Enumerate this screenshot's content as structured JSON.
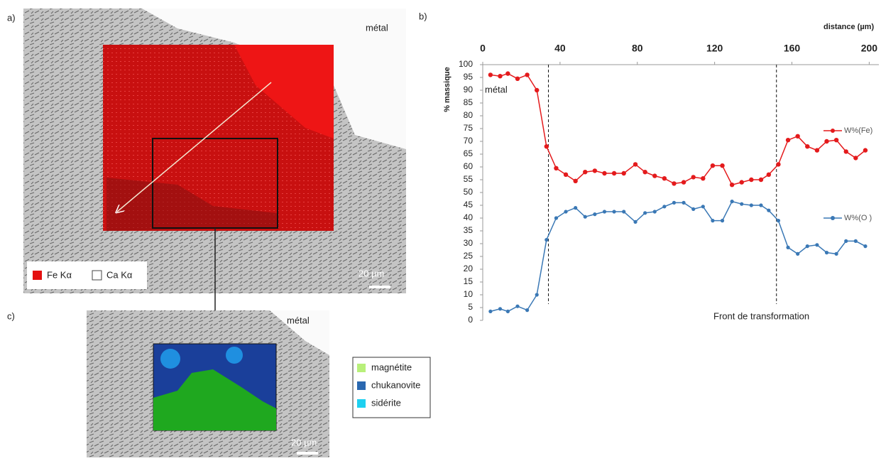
{
  "panel_a": {
    "label": "a)",
    "metal": "métal",
    "legend": [
      "Fe Kα",
      "Ca Kα"
    ],
    "scale": "20 µm"
  },
  "panel_c": {
    "label": "c)",
    "metal": "métal",
    "scale": "20 µm",
    "legend": [
      "magnétite",
      "chukanovite",
      "sidérite"
    ]
  },
  "chart_data": {
    "type": "line",
    "panel_label": "b)",
    "x_label": "distance (µm)",
    "y_label": "% massique",
    "annotations": [
      "métal",
      "Front de transformation"
    ],
    "vlines": [
      34,
      152
    ],
    "x": [
      4,
      9,
      13,
      18,
      23,
      28,
      33,
      38,
      43,
      48,
      53,
      58,
      63,
      68,
      73,
      79,
      84,
      89,
      94,
      99,
      104,
      109,
      114,
      119,
      124,
      129,
      134,
      139,
      144,
      148,
      153,
      158,
      163,
      168,
      173,
      178,
      183,
      188,
      193,
      198
    ],
    "series": [
      {
        "name": "W%(Fe)",
        "color": "#e41a1c",
        "values": [
          96,
          95.5,
          96.5,
          94.5,
          96,
          90,
          68,
          59.5,
          57,
          54.5,
          58,
          58.5,
          57.5,
          57.5,
          57.5,
          61,
          58,
          56.5,
          55.5,
          53.5,
          54,
          56,
          55.5,
          60.5,
          60.5,
          53,
          54,
          55,
          55,
          57,
          61,
          70.5,
          72,
          68,
          66.5,
          70,
          70.5,
          66,
          63.5,
          66.5
        ]
      },
      {
        "name": "W%(O )",
        "color": "#3a78b5",
        "values": [
          3.5,
          4.5,
          3.5,
          5.5,
          4,
          10,
          31.5,
          40,
          42.5,
          44,
          40.5,
          41.5,
          42.5,
          42.5,
          42.5,
          38.5,
          42,
          42.5,
          44.5,
          46,
          46,
          43.5,
          44.5,
          39,
          39,
          46.5,
          45.5,
          45,
          45,
          43,
          39,
          28.5,
          26,
          29,
          29.5,
          26.5,
          26,
          31,
          31,
          29
        ]
      }
    ],
    "xlim": [
      0,
      205
    ],
    "xticks": [
      0,
      40,
      80,
      120,
      160,
      200
    ],
    "ylim": [
      0,
      100
    ],
    "yticks": [
      0,
      5,
      10,
      15,
      20,
      25,
      30,
      35,
      40,
      45,
      50,
      55,
      60,
      65,
      70,
      75,
      80,
      85,
      90,
      95,
      100
    ]
  }
}
